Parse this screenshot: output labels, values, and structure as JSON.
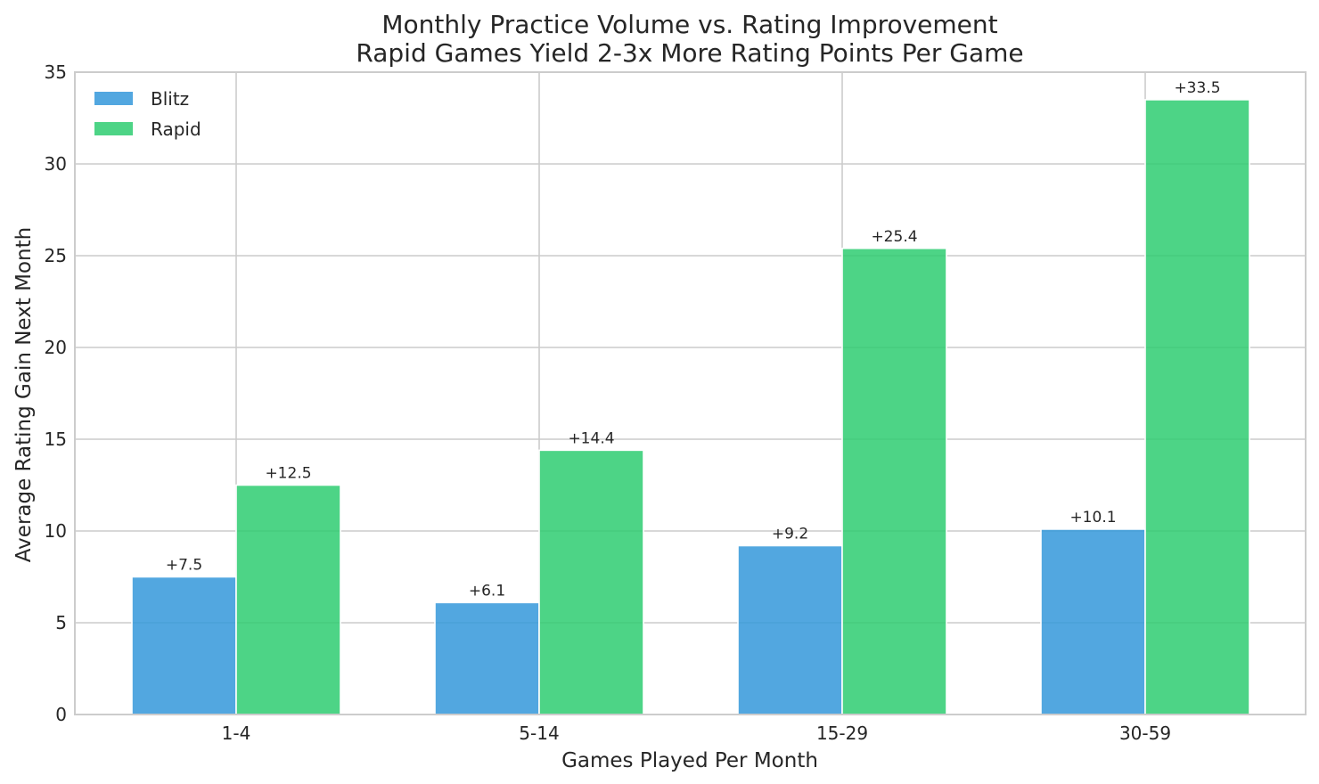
{
  "chart_data": {
    "type": "bar",
    "title": "Monthly Practice Volume vs. Rating Improvement",
    "subtitle": "Rapid Games Yield 2-3x More Rating Points Per Game",
    "xlabel": "Games Played Per Month",
    "ylabel": "Average Rating Gain Next Month",
    "categories": [
      "1-4",
      "5-14",
      "15-29",
      "30-59"
    ],
    "series": [
      {
        "name": "Blitz",
        "color": "#3498db",
        "values": [
          7.5,
          6.1,
          9.2,
          10.1
        ],
        "labels": [
          "+7.5",
          "+6.1",
          "+9.2",
          "+10.1"
        ]
      },
      {
        "name": "Rapid",
        "color": "#2ecc71",
        "values": [
          12.5,
          14.4,
          25.4,
          33.5
        ],
        "labels": [
          "+12.5",
          "+14.4",
          "+25.4",
          "+33.5"
        ]
      }
    ],
    "ylim": [
      0,
      35
    ],
    "yticks": [
      0,
      5,
      10,
      15,
      20,
      25,
      30,
      35
    ],
    "ytick_labels": [
      "0",
      "5",
      "10",
      "15",
      "20",
      "25",
      "30",
      "35"
    ],
    "grid": true,
    "legend_position": "top-left"
  }
}
